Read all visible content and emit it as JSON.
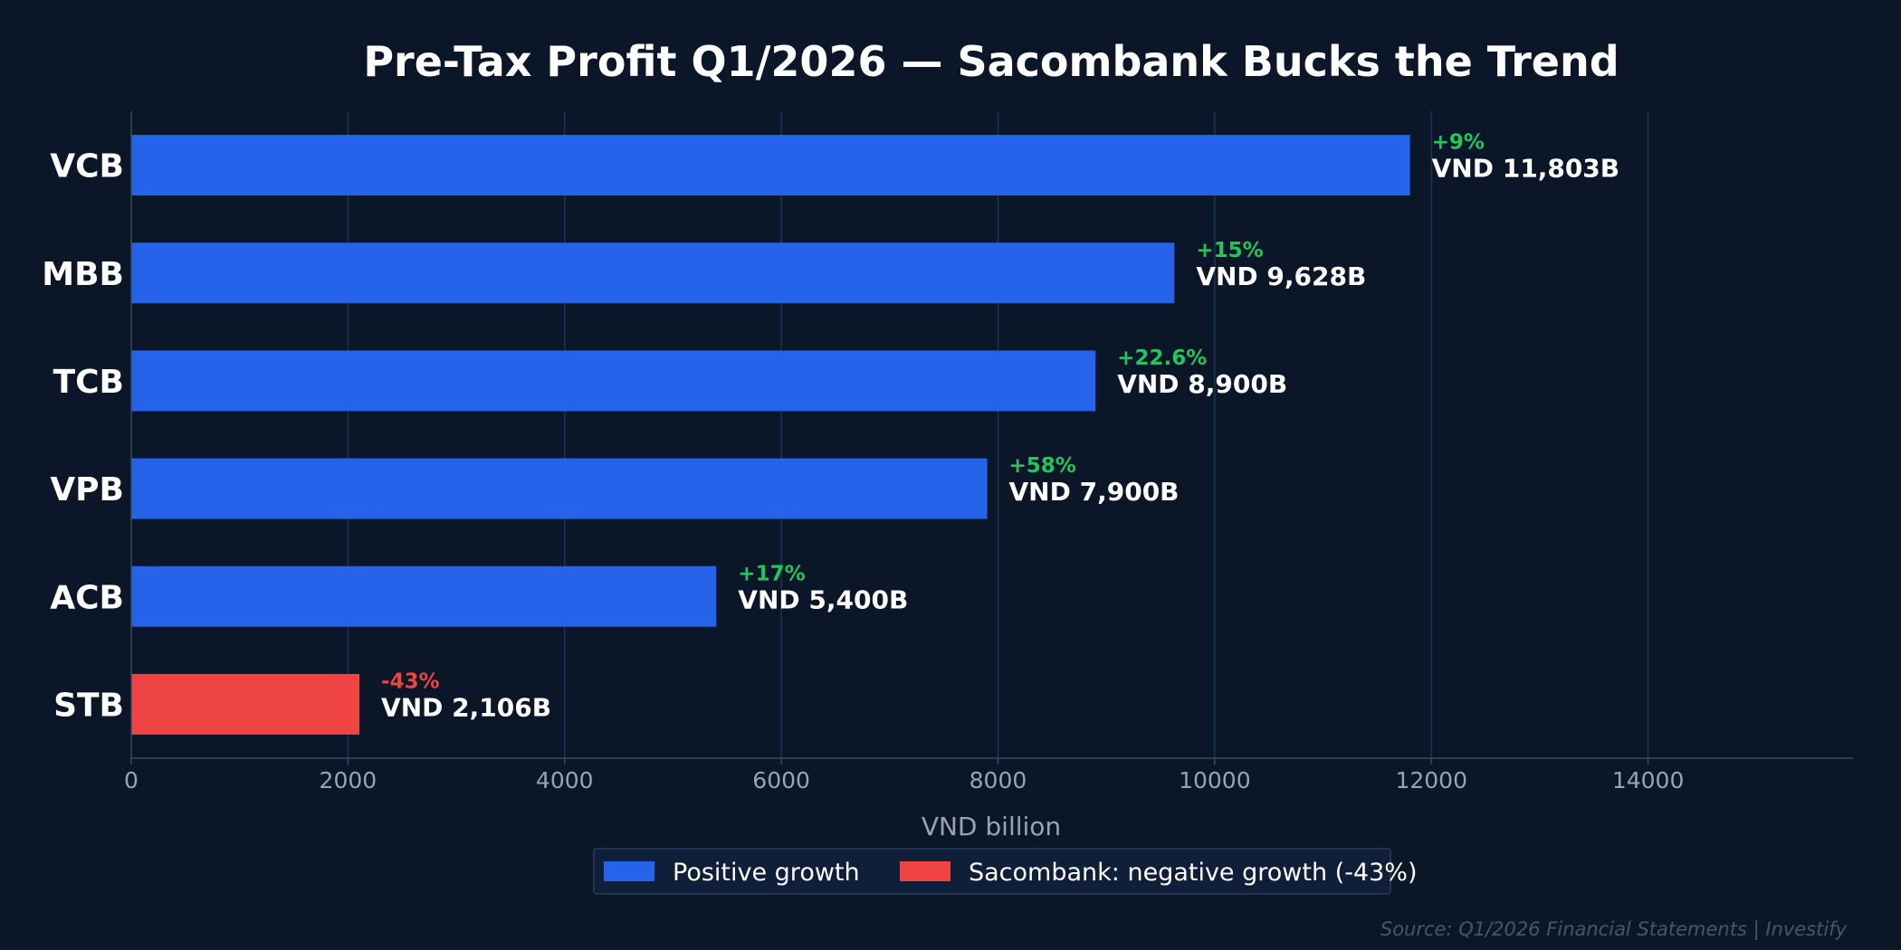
{
  "chart_data": {
    "type": "bar",
    "orientation": "horizontal",
    "title": "Pre-Tax Profit Q1/2026 — Sacombank Bucks the Trend",
    "xlabel": "VND billion",
    "ylabel": "",
    "xlim": [
      0,
      15900
    ],
    "xticks": [
      0,
      2000,
      4000,
      6000,
      8000,
      10000,
      12000,
      14000
    ],
    "grid": true,
    "categories": [
      "VCB",
      "MBB",
      "TCB",
      "VPB",
      "ACB",
      "STB"
    ],
    "values": [
      11803,
      9628,
      8900,
      7900,
      5400,
      2106
    ],
    "value_labels": [
      "VND 11,803B",
      "VND 9,628B",
      "VND 8,900B",
      "VND 7,900B",
      "VND 5,400B",
      "VND 2,106B"
    ],
    "growth_labels": [
      "+9%",
      "+15%",
      "+22.6%",
      "+58%",
      "+17%",
      "-43%"
    ],
    "bar_groups": [
      "positive",
      "positive",
      "positive",
      "positive",
      "positive",
      "negative"
    ],
    "legend": {
      "placement": "bottom-center",
      "entries": [
        {
          "key": "positive",
          "label": "Positive growth"
        },
        {
          "key": "negative",
          "label": "Sacombank: negative growth (-43%)"
        }
      ]
    },
    "source": "Source: Q1/2026 Financial Statements | Investify"
  },
  "colors": {
    "background": "#0b1628",
    "positive": "#2563eb",
    "negative": "#ef4444",
    "growth_positive": "#22c55e",
    "growth_negative": "#ef4444",
    "grid": "#1e3354",
    "axis": "#3a4a63",
    "legend_bg": "#0f1f3a",
    "legend_border": "#2a3b58"
  }
}
